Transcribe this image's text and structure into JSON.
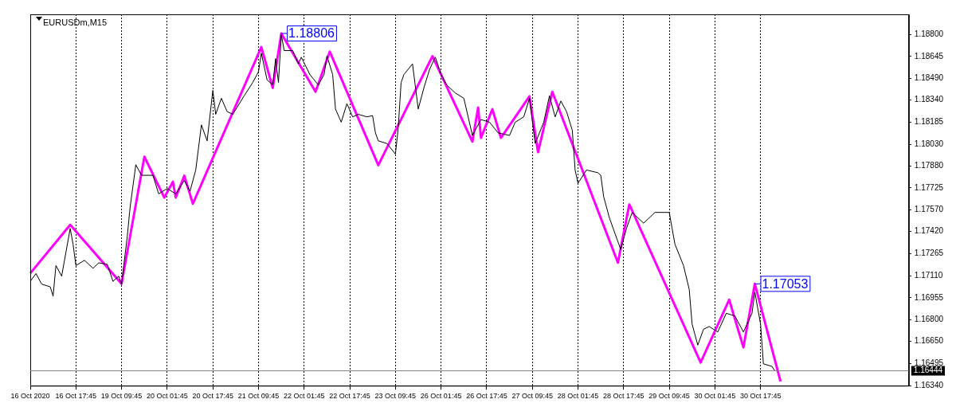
{
  "chart_data": {
    "type": "line",
    "title": "EURUSDm,M15",
    "categories": [
      "16 Oct 2020",
      null,
      null,
      null,
      null,
      null,
      null,
      null,
      null,
      null,
      null,
      null,
      null,
      null,
      null,
      null,
      "16 Oct 17:45",
      null,
      null,
      null,
      null,
      null,
      null,
      null,
      null,
      null,
      null,
      null,
      null,
      null,
      null,
      null,
      "19 Oct 09:45",
      null,
      null,
      null,
      null,
      null,
      null,
      null,
      null,
      null,
      null,
      null,
      null,
      null,
      null,
      null,
      "20 Oct 01:45",
      null,
      null,
      null,
      null,
      null,
      null,
      null,
      null,
      null,
      null,
      null,
      null,
      null,
      null,
      null,
      "20 Oct 17:45",
      null,
      null,
      null,
      null,
      null,
      null,
      null,
      null,
      null,
      null,
      null,
      null,
      null,
      null,
      null,
      "21 Oct 09:45",
      null,
      null,
      null,
      null,
      null,
      null,
      null,
      null,
      null,
      null,
      null,
      null,
      null,
      null,
      null,
      "22 Oct 01:45",
      null,
      null,
      null,
      null,
      null,
      null,
      null,
      null,
      null,
      null,
      null,
      null,
      null,
      null,
      null,
      "22 Oct 17:45",
      null,
      null,
      null,
      null,
      null,
      null,
      null,
      null,
      null,
      null,
      null,
      null,
      null,
      null,
      null,
      "23 Oct 09:45",
      null,
      null,
      null,
      null,
      null,
      null,
      null,
      null,
      null,
      null,
      null,
      null,
      null,
      null,
      null,
      "26 Oct 01:45",
      null,
      null,
      null,
      null,
      null,
      null,
      null,
      null,
      null,
      null,
      null,
      null,
      null,
      null,
      null,
      "26 Oct 17:45",
      null,
      null,
      null,
      null,
      null,
      null,
      null,
      null,
      null,
      null,
      null,
      null,
      null,
      null,
      null,
      "27 Oct 09:45",
      null,
      null,
      null,
      null,
      null,
      null,
      null,
      null,
      null,
      null,
      null,
      null,
      null,
      null,
      null,
      "28 Oct 01:45",
      null,
      null,
      null,
      null,
      null,
      null,
      null,
      null,
      null,
      null,
      null,
      null,
      null,
      null,
      null,
      "28 Oct 17:45",
      null,
      null,
      null,
      null,
      null,
      null,
      null,
      null,
      null,
      null,
      null,
      null,
      null,
      null,
      null,
      "29 Oct 09:45",
      null,
      null,
      null,
      null,
      null,
      null,
      null,
      null,
      null,
      null,
      null,
      null,
      null,
      null,
      null,
      "30 Oct 01:45",
      null,
      null,
      null,
      null,
      null,
      null,
      null,
      null,
      null,
      null,
      null,
      null,
      null,
      null,
      null,
      "30 Oct 17:45",
      null,
      null,
      null,
      null,
      null,
      null,
      null,
      null,
      null,
      null,
      null,
      null,
      null,
      null,
      null,
      null,
      null,
      null,
      null,
      null,
      null,
      null,
      null,
      null,
      null,
      null,
      null,
      null,
      null,
      null,
      null,
      null,
      null,
      null,
      null,
      null,
      null,
      null,
      null,
      null,
      null,
      null,
      null,
      null,
      null,
      null,
      null,
      null,
      null,
      null,
      null,
      null
    ],
    "ylim": [
      1.1634,
      1.1894
    ],
    "yticks": [
      {
        "value": 1.188,
        "label": "1.18800"
      },
      {
        "value": 1.18645,
        "label": "1.18645"
      },
      {
        "value": 1.1849,
        "label": "1.18490"
      },
      {
        "value": 1.1834,
        "label": "1.18340"
      },
      {
        "value": 1.18185,
        "label": "1.18185"
      },
      {
        "value": 1.1803,
        "label": "1.18030"
      },
      {
        "value": 1.1788,
        "label": "1.17880"
      },
      {
        "value": 1.17725,
        "label": "1.17725"
      },
      {
        "value": 1.1757,
        "label": "1.17570"
      },
      {
        "value": 1.1742,
        "label": "1.17420"
      },
      {
        "value": 1.17265,
        "label": "1.17265"
      },
      {
        "value": 1.1711,
        "label": "1.17110"
      },
      {
        "value": 1.16955,
        "label": "1.16955"
      },
      {
        "value": 1.168,
        "label": "1.16800"
      },
      {
        "value": 1.1665,
        "label": "1.16650"
      },
      {
        "value": 1.16495,
        "label": "1.16495"
      },
      {
        "value": 1.1634,
        "label": "1.16340"
      }
    ],
    "grid": "x",
    "marker": "none",
    "line_style": "solid",
    "series": [
      {
        "color": "#000000",
        "values": [
          1.1707,
          null,
          1.17125,
          null,
          1.17051,
          null,
          null,
          1.17032,
          1.16967,
          1.17181,
          null,
          1.17107,
          1.17218,
          null,
          1.17441,
          1.1733,
          1.17181,
          null,
          null,
          1.17218,
          null,
          null,
          1.17162,
          null,
          1.172,
          null,
          null,
          1.1719,
          null,
          1.1707,
          null,
          1.17107,
          1.17051,
          null,
          1.17385,
          1.1759,
          null,
          1.17887,
          null,
          1.17813,
          null,
          null,
          null,
          1.17813,
          null,
          1.17683,
          null,
          null,
          1.1772,
          null,
          null,
          1.17683,
          null,
          null,
          1.17776,
          null,
          1.17701,
          null,
          1.1785,
          null,
          1.18166,
          null,
          1.18054,
          null,
          1.18408,
          1.1824,
          null,
          1.18352,
          null,
          1.18259,
          null,
          1.1824,
          null,
          null,
          null,
          1.1837,
          null,
          null,
          1.18463,
          null,
          1.18538,
          1.18668,
          null,
          1.18482,
          null,
          1.18445,
          1.1863,
          1.18463,
          1.18798,
          1.18686,
          null,
          null,
          1.18686,
          null,
          1.18593,
          1.1864,
          null,
          null,
          1.18519,
          null,
          null,
          1.18445,
          null,
          1.18519,
          1.18649,
          null,
          1.18519,
          1.18277,
          null,
          1.18185,
          null,
          1.18315,
          null,
          1.18222,
          null,
          1.1824,
          null,
          null,
          1.18222,
          null,
          1.18231,
          1.1811,
          1.18054,
          null,
          null,
          1.18036,
          null,
          null,
          1.17962,
          1.18147,
          1.18463,
          1.18519,
          null,
          null,
          1.18593,
          null,
          1.18277,
          null,
          1.18426,
          null,
          1.18556,
          null,
          1.1864,
          null,
          1.18519,
          null,
          1.18445,
          null,
          null,
          1.18389,
          null,
          null,
          1.18352,
          null,
          null,
          1.18092,
          null,
          null,
          1.18203,
          null,
          null,
          1.18185,
          null,
          null,
          1.1811,
          null,
          null,
          null,
          1.18092,
          null,
          1.18185,
          null,
          null,
          1.18222,
          null,
          1.18352,
          null,
          1.18036,
          null,
          null,
          1.18185,
          null,
          1.1837,
          null,
          1.18222,
          null,
          1.18333,
          null,
          1.18259,
          null,
          1.18129,
          1.1785,
          1.17757,
          null,
          null,
          1.1785,
          null,
          null,
          null,
          1.17831,
          1.17813,
          1.17664,
          null,
          1.17516,
          null,
          1.17404,
          null,
          1.17293,
          null,
          1.17441,
          null,
          1.17553,
          null,
          null,
          null,
          1.17478,
          null,
          null,
          null,
          1.17553,
          null,
          null,
          null,
          null,
          1.17553,
          1.17441,
          1.1733,
          null,
          null,
          1.17181,
          null,
          1.17014,
          1.16772,
          null,
          1.16624,
          null,
          1.16735,
          null,
          1.16754,
          null,
          null,
          1.16716,
          null,
          null,
          1.16847,
          null,
          null,
          1.16828,
          null,
          null,
          1.16716,
          null,
          null,
          1.16847,
          1.16995,
          null,
          1.16772,
          1.16493,
          null,
          null,
          1.16475,
          1.16444,
          null,
          null,
          null,
          null,
          null,
          null,
          null,
          null,
          null,
          null,
          null,
          null,
          null,
          null,
          null,
          null,
          null,
          null,
          null,
          null,
          null,
          null,
          null,
          null,
          null,
          null,
          null,
          null,
          null,
          null,
          null,
          null,
          null,
          null,
          null,
          null,
          null,
          null,
          null,
          null,
          null,
          null,
          null,
          null,
          null,
          null,
          null
        ]
      },
      {
        "color": "#ff00ff",
        "values": [
          1.17127,
          null,
          null,
          null,
          null,
          null,
          null,
          null,
          null,
          null,
          null,
          null,
          null,
          null,
          1.17466,
          null,
          null,
          null,
          null,
          null,
          null,
          null,
          null,
          null,
          null,
          null,
          null,
          null,
          null,
          null,
          null,
          null,
          1.17053,
          null,
          null,
          null,
          null,
          null,
          null,
          null,
          1.17943,
          null,
          null,
          null,
          null,
          null,
          null,
          1.17657,
          null,
          null,
          1.17768,
          1.17657,
          null,
          null,
          1.1781,
          null,
          null,
          1.17614,
          null,
          null,
          null,
          null,
          null,
          null,
          null,
          null,
          null,
          null,
          null,
          null,
          null,
          null,
          null,
          null,
          null,
          null,
          null,
          null,
          null,
          null,
          null,
          1.18711,
          null,
          null,
          null,
          1.18425,
          null,
          null,
          1.18806,
          null,
          null,
          null,
          null,
          null,
          null,
          null,
          null,
          null,
          null,
          null,
          1.18398,
          null,
          null,
          null,
          null,
          1.18679,
          null,
          null,
          null,
          null,
          null,
          null,
          null,
          null,
          null,
          null,
          null,
          null,
          null,
          null,
          null,
          null,
          1.17884,
          null,
          null,
          null,
          null,
          null,
          null,
          null,
          null,
          null,
          null,
          null,
          null,
          null,
          null,
          null,
          null,
          null,
          null,
          1.18647,
          null,
          null,
          null,
          null,
          null,
          null,
          null,
          null,
          null,
          null,
          null,
          null,
          null,
          1.18049,
          null,
          1.18287,
          1.18075,
          null,
          null,
          null,
          1.18276,
          null,
          null,
          1.18075,
          null,
          null,
          null,
          null,
          null,
          null,
          null,
          null,
          null,
          1.18366,
          null,
          null,
          1.17975,
          null,
          null,
          null,
          null,
          1.18398,
          null,
          null,
          null,
          null,
          null,
          null,
          null,
          null,
          null,
          null,
          null,
          null,
          null,
          null,
          null,
          null,
          null,
          null,
          null,
          null,
          null,
          null,
          1.17201,
          null,
          null,
          null,
          1.17609,
          null,
          null,
          null,
          null,
          null,
          null,
          null,
          null,
          null,
          null,
          null,
          null,
          null,
          null,
          null,
          null,
          null,
          null,
          null,
          null,
          null,
          null,
          null,
          null,
          1.16502,
          null,
          null,
          null,
          null,
          null,
          null,
          null,
          null,
          null,
          1.16942,
          null,
          null,
          null,
          null,
          1.16608,
          null,
          null,
          null,
          1.17053,
          null,
          null,
          null,
          null,
          null,
          null,
          null,
          null,
          1.1637,
          null,
          null,
          null,
          null,
          null,
          null,
          null,
          null,
          null,
          null,
          null,
          null,
          null,
          null,
          null,
          null,
          null,
          null,
          null,
          null,
          null,
          null,
          null,
          null,
          null,
          null,
          null,
          null,
          null,
          null,
          null,
          null,
          null,
          null,
          null,
          null,
          null,
          null,
          null,
          null,
          null,
          null,
          null,
          null,
          null
        ]
      }
    ],
    "ref_lines": [
      {
        "axis": "y",
        "value": 1.16444,
        "label": "1.16444",
        "color": "#808080"
      }
    ],
    "annotations": [
      "1.18806",
      "1.17053"
    ]
  }
}
